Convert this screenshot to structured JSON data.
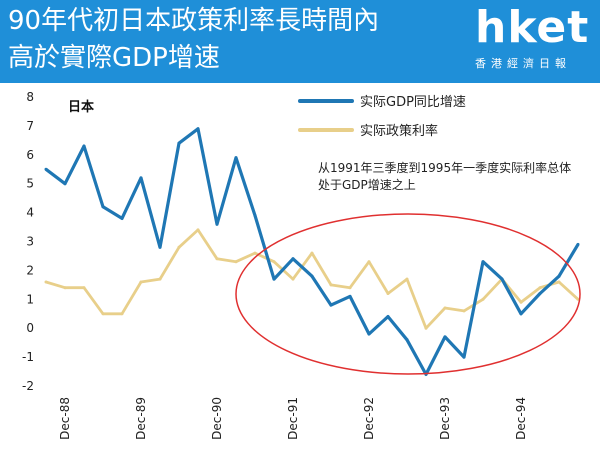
{
  "header": {
    "title_line1": "90年代初日本政策利率長時間內",
    "title_line2": "高於實際GDP增速"
  },
  "brand": {
    "name": "hket",
    "subtitle": "香港經濟日報"
  },
  "colors": {
    "banner": "#1f8fd8",
    "gdp_series": "#1f77b4",
    "rate_series": "#e8cf8a",
    "highlight_ellipse": "#e03030"
  },
  "chart_data": {
    "type": "line",
    "title": "日本",
    "annotation": "从1991年三季度到1995年一季度实际利率总体处于GDP增速之上",
    "annotation_line1": "从1991年三季度到1995年一季度实际利率总体",
    "annotation_line2": "处于GDP增速之上",
    "ylim": [
      -2,
      8
    ],
    "yticks": [
      8,
      7,
      6,
      5,
      4,
      3,
      2,
      1,
      0,
      -1,
      -2
    ],
    "xtick_labels": [
      "Dec-88",
      "Dec-89",
      "Dec-90",
      "Dec-91",
      "Dec-92",
      "Dec-93",
      "Dec-94"
    ],
    "x": [
      "Sep-88",
      "Dec-88",
      "Mar-89",
      "Jun-89",
      "Sep-89",
      "Dec-89",
      "Mar-90",
      "Jun-90",
      "Sep-90",
      "Dec-90",
      "Mar-91",
      "Jun-91",
      "Sep-91",
      "Dec-91",
      "Mar-92",
      "Jun-92",
      "Sep-92",
      "Dec-92",
      "Mar-93",
      "Jun-93",
      "Sep-93",
      "Dec-93",
      "Mar-94",
      "Jun-94",
      "Sep-94",
      "Dec-94",
      "Mar-95",
      "Jun-95",
      "Sep-95"
    ],
    "series": [
      {
        "name": "实际GDP同比增速",
        "values": [
          5.5,
          5.0,
          6.3,
          4.2,
          3.8,
          5.2,
          2.8,
          6.4,
          6.9,
          3.6,
          5.9,
          3.9,
          1.7,
          2.4,
          1.8,
          0.8,
          1.1,
          -0.2,
          0.4,
          -0.4,
          -1.6,
          -0.3,
          -1.0,
          2.3,
          1.7,
          0.5,
          1.2,
          1.8,
          2.9
        ]
      },
      {
        "name": "实际政策利率",
        "values": [
          1.6,
          1.4,
          1.4,
          0.5,
          0.5,
          1.6,
          1.7,
          2.8,
          3.4,
          2.4,
          2.3,
          2.6,
          2.3,
          1.7,
          2.6,
          1.5,
          1.4,
          2.3,
          1.2,
          1.7,
          0.0,
          0.7,
          0.6,
          1.0,
          1.7,
          0.9,
          1.4,
          1.6,
          1.0
        ]
      }
    ]
  }
}
